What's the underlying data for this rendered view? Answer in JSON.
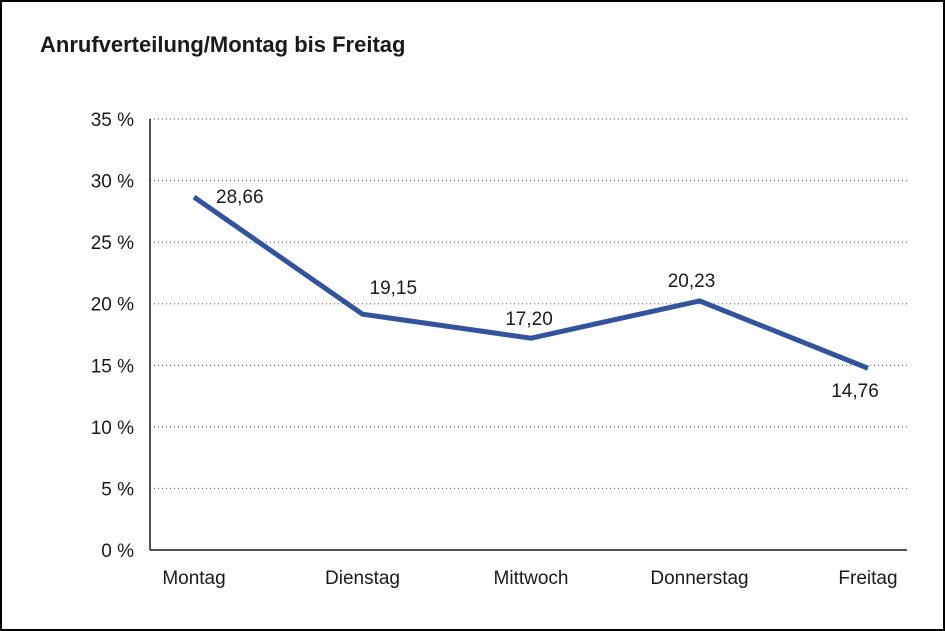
{
  "title": "Anrufverteilung/Montag bis Freitag",
  "colors": {
    "line": "#33549C",
    "axis": "#1a1a1a",
    "grid": "#4d4d4d",
    "text": "#1a1a1a",
    "background": "#ffffff",
    "border": "#000000"
  },
  "chart_data": {
    "type": "line",
    "title": "Anrufverteilung/Montag bis Freitag",
    "categories": [
      "Montag",
      "Dienstag",
      "Mittwoch",
      "Donnerstag",
      "Freitag"
    ],
    "values": [
      28.66,
      19.15,
      17.2,
      20.23,
      14.76
    ],
    "value_labels": [
      "28,66",
      "19,15",
      "17,20",
      "20,23",
      "14,76"
    ],
    "xlabel": "",
    "ylabel": "",
    "ylim": [
      0,
      35
    ],
    "ytick_step": 5,
    "ytick_suffix": " %",
    "ytick_labels": [
      "0 %",
      "5 %",
      "10 %",
      "15 %",
      "20 %",
      "25 %",
      "30 %",
      "35 %"
    ],
    "grid": "dotted-horizontal",
    "legend": "none",
    "line_color": "#33549C"
  }
}
